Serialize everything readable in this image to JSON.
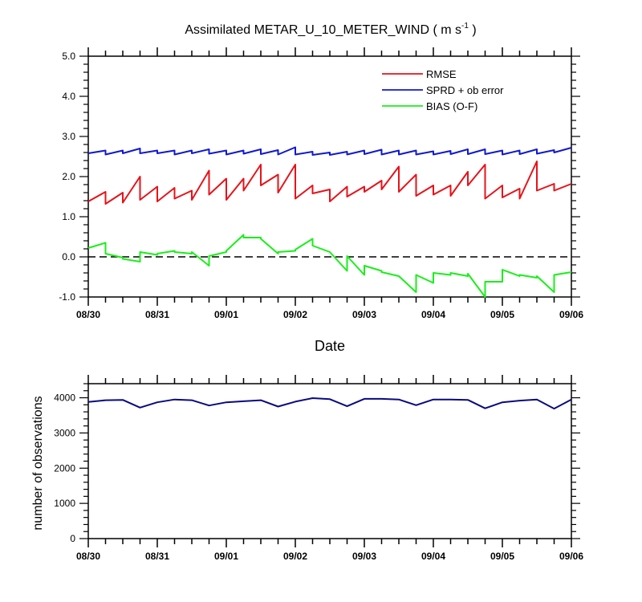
{
  "chart_data": [
    {
      "type": "line",
      "title": "Assimilated METAR_U_10_METER_WIND ( m s",
      "title_superscript": "-1",
      "title_suffix": " )",
      "xlabel": "Date",
      "ylabel": "",
      "ylim": [
        -1.0,
        5.0
      ],
      "yticks": [
        "-1.0",
        "0.0",
        "1.0",
        "2.0",
        "3.0",
        "4.0",
        "5.0"
      ],
      "xlim": [
        0,
        7
      ],
      "xtick_labels": [
        "08/30",
        "08/31",
        "09/01",
        "09/02",
        "09/03",
        "09/04",
        "09/05",
        "09/06"
      ],
      "reference_line": {
        "y": 0,
        "style": "dashed"
      },
      "legend_position": "top-right",
      "series": [
        {
          "name": "RMSE",
          "color": "#e8121a",
          "x": [
            0,
            0.25,
            0.25,
            0.5,
            0.5,
            0.75,
            0.75,
            1.0,
            1.0,
            1.25,
            1.25,
            1.5,
            1.5,
            1.75,
            1.75,
            2.0,
            2.0,
            2.25,
            2.25,
            2.5,
            2.5,
            2.75,
            2.75,
            3.0,
            3.0,
            3.25,
            3.25,
            3.5,
            3.5,
            3.75,
            3.75,
            4.0,
            4.0,
            4.25,
            4.25,
            4.5,
            4.5,
            4.75,
            4.75,
            5.0,
            5.0,
            5.25,
            5.25,
            5.5,
            5.5,
            5.75,
            5.75,
            6.0,
            6.0,
            6.25,
            6.25,
            6.5,
            6.5,
            6.75,
            6.75,
            7.0
          ],
          "y": [
            1.38,
            1.62,
            1.32,
            1.6,
            1.35,
            2.0,
            1.42,
            1.75,
            1.38,
            1.72,
            1.45,
            1.65,
            1.42,
            2.15,
            1.55,
            1.95,
            1.42,
            1.95,
            1.65,
            2.3,
            1.78,
            2.05,
            1.6,
            2.3,
            1.45,
            1.78,
            1.58,
            1.68,
            1.38,
            1.75,
            1.5,
            1.75,
            1.62,
            1.9,
            1.68,
            2.25,
            1.62,
            2.05,
            1.52,
            1.78,
            1.55,
            1.78,
            1.52,
            2.12,
            1.78,
            2.3,
            1.45,
            1.78,
            1.48,
            1.7,
            1.45,
            2.38,
            1.65,
            1.82,
            1.65,
            1.82
          ]
        },
        {
          "name": "SPRD + ob error",
          "color": "#1019d0",
          "x": [
            0,
            0.25,
            0.25,
            0.5,
            0.5,
            0.75,
            0.75,
            1.0,
            1.0,
            1.25,
            1.25,
            1.5,
            1.5,
            1.75,
            1.75,
            2.0,
            2.0,
            2.25,
            2.25,
            2.5,
            2.5,
            2.75,
            2.75,
            3.0,
            3.0,
            3.25,
            3.25,
            3.5,
            3.5,
            3.75,
            3.75,
            4.0,
            4.0,
            4.25,
            4.25,
            4.5,
            4.5,
            4.75,
            4.75,
            5.0,
            5.0,
            5.25,
            5.25,
            5.5,
            5.5,
            5.75,
            5.75,
            6.0,
            6.0,
            6.25,
            6.25,
            6.5,
            6.5,
            6.75,
            6.75,
            7.0
          ],
          "y": [
            2.58,
            2.65,
            2.55,
            2.65,
            2.58,
            2.7,
            2.58,
            2.65,
            2.58,
            2.65,
            2.55,
            2.65,
            2.58,
            2.68,
            2.57,
            2.65,
            2.55,
            2.65,
            2.57,
            2.68,
            2.56,
            2.66,
            2.55,
            2.73,
            2.55,
            2.62,
            2.54,
            2.6,
            2.54,
            2.62,
            2.55,
            2.65,
            2.56,
            2.67,
            2.55,
            2.65,
            2.55,
            2.65,
            2.55,
            2.63,
            2.55,
            2.64,
            2.56,
            2.68,
            2.56,
            2.68,
            2.56,
            2.65,
            2.55,
            2.65,
            2.56,
            2.68,
            2.57,
            2.66,
            2.6,
            2.72
          ]
        },
        {
          "name": "BIAS (O-F)",
          "color": "#19ef19",
          "x": [
            0,
            0.25,
            0.25,
            0.5,
            0.5,
            0.75,
            0.75,
            1.0,
            1.0,
            1.25,
            1.25,
            1.5,
            1.5,
            1.75,
            1.75,
            2.0,
            2.0,
            2.25,
            2.25,
            2.5,
            2.5,
            2.75,
            2.75,
            3.0,
            3.0,
            3.25,
            3.25,
            3.5,
            3.5,
            3.75,
            3.75,
            4.0,
            4.0,
            4.25,
            4.25,
            4.5,
            4.5,
            4.75,
            4.75,
            5.0,
            5.0,
            5.25,
            5.25,
            5.5,
            5.5,
            5.75,
            5.75,
            6.0,
            6.0,
            6.25,
            6.25,
            6.5,
            6.5,
            6.75,
            6.75,
            7.0
          ],
          "y": [
            0.22,
            0.35,
            0.08,
            -0.02,
            -0.05,
            -0.12,
            0.12,
            0.05,
            0.08,
            0.15,
            0.12,
            0.08,
            0.12,
            -0.22,
            0.02,
            0.12,
            0.15,
            0.55,
            0.48,
            0.48,
            0.45,
            0.08,
            0.12,
            0.15,
            0.18,
            0.45,
            0.28,
            0.12,
            0.12,
            -0.35,
            0.02,
            -0.45,
            -0.22,
            -0.35,
            -0.38,
            -0.48,
            -0.48,
            -0.88,
            -0.45,
            -0.65,
            -0.4,
            -0.45,
            -0.4,
            -0.48,
            -0.42,
            -1.0,
            -0.62,
            -0.62,
            -0.32,
            -0.48,
            -0.45,
            -0.52,
            -0.48,
            -0.88,
            -0.45,
            -0.38
          ]
        }
      ]
    },
    {
      "type": "line",
      "title": "",
      "xlabel": "",
      "ylabel": "number of observations",
      "ylim": [
        0,
        4400
      ],
      "yticks": [
        "0",
        "1000",
        "2000",
        "3000",
        "4000"
      ],
      "xlim": [
        0,
        7
      ],
      "xtick_labels": [
        "08/30",
        "08/31",
        "09/01",
        "09/02",
        "09/03",
        "09/04",
        "09/05",
        "09/06"
      ],
      "series": [
        {
          "color": "#0a0a80",
          "x": [
            0,
            0.25,
            0.5,
            0.75,
            1.0,
            1.25,
            1.5,
            1.75,
            2.0,
            2.25,
            2.5,
            2.75,
            3.0,
            3.25,
            3.5,
            3.75,
            4.0,
            4.25,
            4.5,
            4.75,
            5.0,
            5.25,
            5.5,
            5.75,
            6.0,
            6.25,
            6.5,
            6.75,
            7.0
          ],
          "y": [
            3880,
            3930,
            3940,
            3720,
            3870,
            3950,
            3930,
            3780,
            3870,
            3900,
            3930,
            3750,
            3890,
            3990,
            3960,
            3760,
            3970,
            3970,
            3950,
            3790,
            3950,
            3950,
            3940,
            3700,
            3870,
            3920,
            3950,
            3690,
            3950
          ]
        }
      ]
    }
  ]
}
